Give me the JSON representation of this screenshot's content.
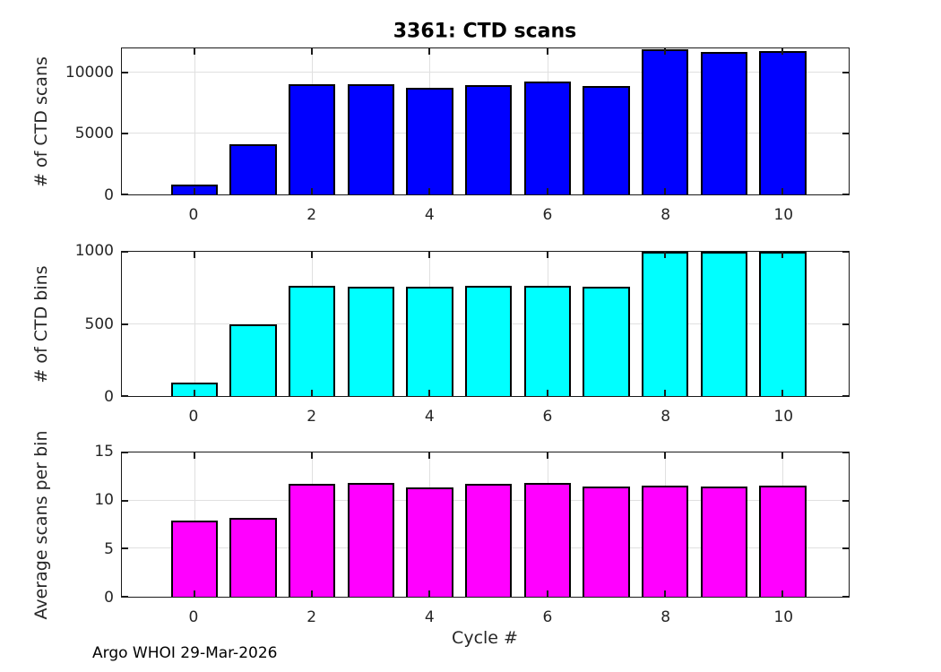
{
  "title": "3361: CTD scans",
  "xlabel": "Cycle #",
  "footer": "Argo WHOI 29-Mar-2026",
  "colors": {
    "scans_bar": "#0000ff",
    "bins_bar": "#00ffff",
    "avg_bar": "#ff00ff",
    "bar_edge": "#000000",
    "grid": "#e0e0e0",
    "axis": "#1a1a1a",
    "tick_text": "#262626",
    "background": "#ffffff"
  },
  "chart_data": [
    {
      "type": "bar",
      "name": "ctd-scans",
      "ylabel": "# of CTD scans",
      "x": [
        0,
        1,
        2,
        3,
        4,
        5,
        6,
        7,
        8,
        9,
        10
      ],
      "values": [
        840,
        4150,
        9030,
        9060,
        8790,
        9010,
        9250,
        8880,
        11950,
        11690,
        11810
      ],
      "ylim": [
        0,
        12000
      ],
      "yticks": [
        0,
        5000,
        10000
      ],
      "ytick_labels": [
        "0",
        "5000",
        "10000"
      ],
      "xticks": [
        0,
        2,
        4,
        6,
        8,
        10
      ],
      "xtick_labels": [
        "0",
        "2",
        "4",
        "6",
        "8",
        "10"
      ],
      "xlim": [
        -1.23,
        11.12
      ],
      "bar_width": 0.8,
      "grid": true,
      "bar_color": "#0000ff"
    },
    {
      "type": "bar",
      "name": "ctd-bins",
      "ylabel": "# of CTD bins",
      "x": [
        0,
        1,
        2,
        3,
        4,
        5,
        6,
        7,
        8,
        9,
        10
      ],
      "values": [
        95,
        500,
        767,
        760,
        760,
        767,
        767,
        760,
        1000,
        1000,
        1000
      ],
      "ylim": [
        0,
        1000
      ],
      "yticks": [
        0,
        500,
        1000
      ],
      "ytick_labels": [
        "0",
        "500",
        "1000"
      ],
      "xticks": [
        0,
        2,
        4,
        6,
        8,
        10
      ],
      "xtick_labels": [
        "0",
        "2",
        "4",
        "6",
        "8",
        "10"
      ],
      "xlim": [
        -1.23,
        11.12
      ],
      "bar_width": 0.8,
      "grid": true,
      "bar_color": "#00ffff"
    },
    {
      "type": "bar",
      "name": "avg-scans-per-bin",
      "ylabel": "Average scans per bin",
      "x": [
        0,
        1,
        2,
        3,
        4,
        5,
        6,
        7,
        8,
        9,
        10
      ],
      "values": [
        7.9,
        8.2,
        11.7,
        11.8,
        11.4,
        11.7,
        11.85,
        11.5,
        11.6,
        11.5,
        11.6
      ],
      "ylim": [
        0,
        15
      ],
      "yticks": [
        0,
        5,
        10,
        15
      ],
      "ytick_labels": [
        "0",
        "5",
        "10",
        "15"
      ],
      "xticks": [
        0,
        2,
        4,
        6,
        8,
        10
      ],
      "xtick_labels": [
        "0",
        "2",
        "4",
        "6",
        "8",
        "10"
      ],
      "xlim": [
        -1.23,
        11.12
      ],
      "bar_width": 0.8,
      "grid": true,
      "bar_color": "#ff00ff"
    }
  ]
}
